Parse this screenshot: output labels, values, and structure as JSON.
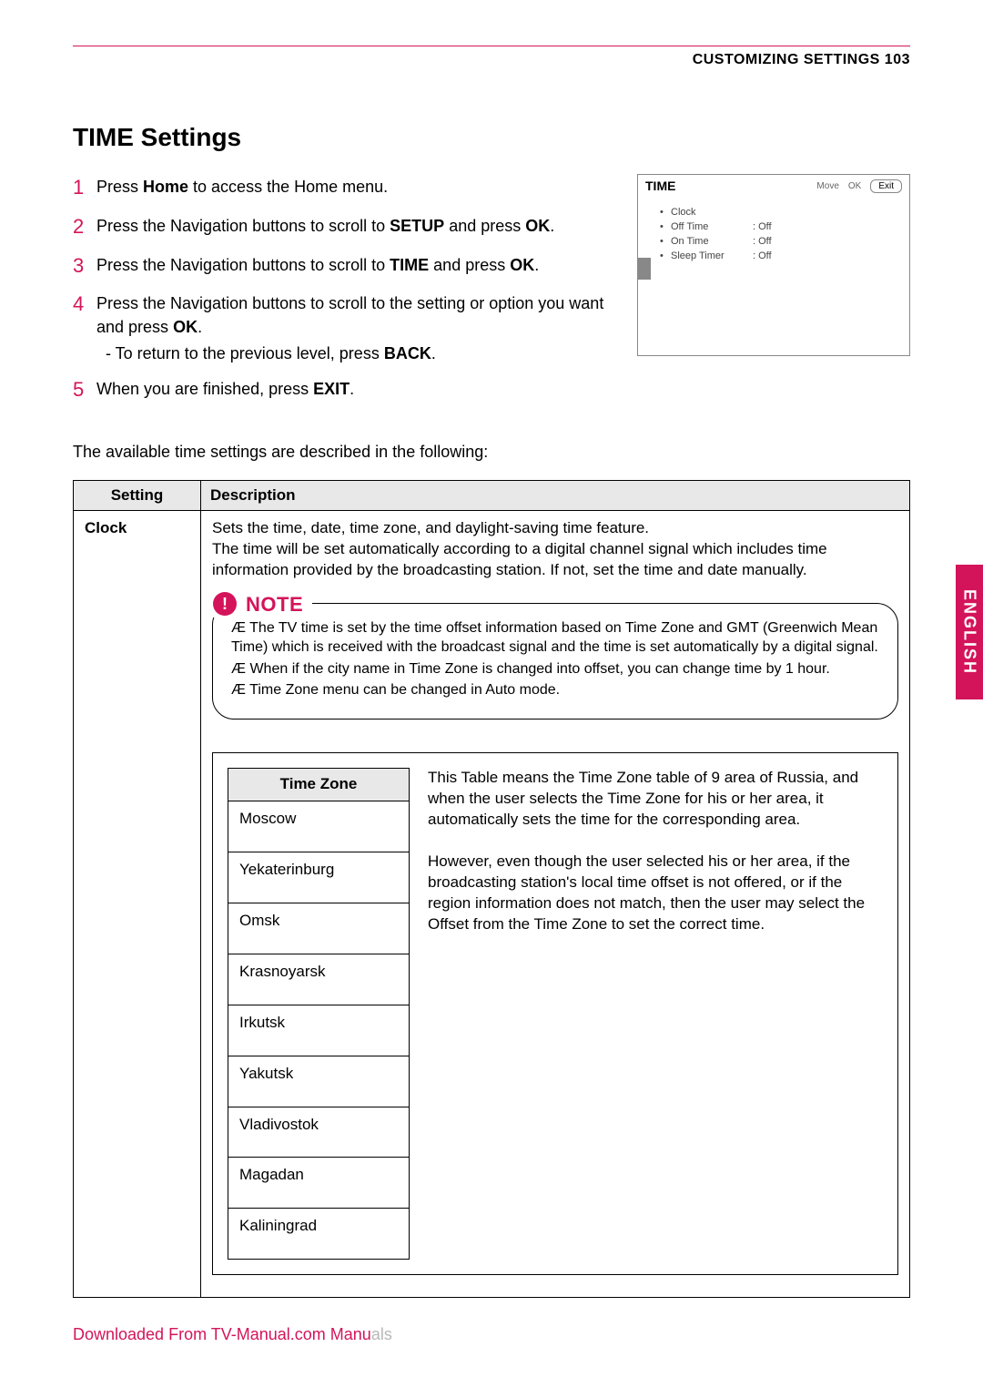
{
  "header": {
    "section": "CUSTOMIZING SETTINGS",
    "page": "103"
  },
  "title": "TIME Settings",
  "sideTab": "ENGLISH",
  "steps": [
    {
      "n": "1",
      "html": "Press <b>Home</b> to access the Home menu."
    },
    {
      "n": "2",
      "html": "Press the Navigation buttons to scroll to <b>SETUP</b> and press <b>OK</b>."
    },
    {
      "n": "3",
      "html": "Press the Navigation buttons to scroll to <b>TIME</b> and press <b>OK</b>."
    },
    {
      "n": "4",
      "html": "Press the Navigation buttons to scroll to the setting or option you want and press <b>OK</b>.",
      "sub": "- To return to the previous level, press <b>BACK</b>."
    },
    {
      "n": "5",
      "html": "When you are finished, press <b>EXIT</b>."
    }
  ],
  "osd": {
    "title": "TIME",
    "ctrls": {
      "move": "Move",
      "ok": "OK",
      "exit": "Exit"
    },
    "items": [
      {
        "label": "Clock",
        "val": ""
      },
      {
        "label": "Off Time",
        "val": ": Off"
      },
      {
        "label": "On Time",
        "val": ": Off"
      },
      {
        "label": "Sleep Timer",
        "val": ": Off"
      }
    ]
  },
  "intro": "The available time settings are described in the following:",
  "table": {
    "headers": {
      "setting": "Setting",
      "desc": "Description"
    },
    "row": {
      "setting": "Clock",
      "desc": "Sets the time, date, time zone, and daylight-saving time feature.\nThe time will be set automatically according to a digital channel signal which includes time information provided by the broadcasting station. If not, set the time and date manually."
    }
  },
  "note": {
    "label": "NOTE",
    "items": [
      "The TV time is set by the time offset information based on Time Zone and GMT (Greenwich Mean Time) which is received with the broadcast signal and the time is set automatically by a digital signal.",
      "When if the city name in Time Zone is changed into offset, you can change time by 1 hour.",
      "Time Zone menu can be changed in Auto mode."
    ]
  },
  "timezone": {
    "header": "Time Zone",
    "rows": [
      "Moscow",
      "Yekaterinburg",
      "Omsk",
      "Krasnoyarsk",
      "Irkutsk",
      "Yakutsk",
      "Vladivostok",
      "Magadan",
      "Kaliningrad"
    ],
    "desc1": "This Table means the Time Zone table of 9 area of Russia, and when the user selects the Time Zone for his or her area, it automatically sets the time for the corresponding area.",
    "desc2": "However, even though the user selected his or her area, if the broadcasting station's local time offset is not offered, or if the region information does not match, then the user may select the Offset from the Time Zone to set the correct time."
  },
  "footer": {
    "red": "Downloaded From TV-Manual.com Manu",
    "grey": "als"
  }
}
